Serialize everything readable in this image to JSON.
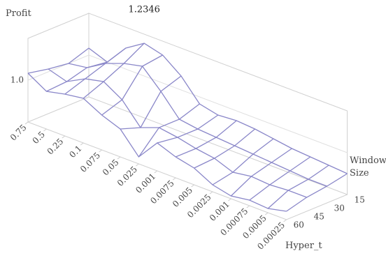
{
  "chart_data": {
    "type": "surface",
    "z_axis_title": "Profit",
    "x_axis_title": "Hyper_t",
    "y_axis_title": "Window Size",
    "categories": [
      "0.75",
      "0.5",
      "0.25",
      "0.1",
      "0.075",
      "0.05",
      "0.025",
      "0.001",
      "0.0075",
      "0.005",
      "0.0025",
      "0.001",
      "0.00075",
      "0.0005",
      "0.00025"
    ],
    "series": [
      {
        "name": "15",
        "values": [
          1.05,
          1.0,
          1.15,
          1.2346,
          1.2,
          1.1,
          0.95,
          0.92,
          0.93,
          0.92,
          0.9,
          0.88,
          0.87,
          0.86,
          0.85
        ]
      },
      {
        "name": "30",
        "values": [
          1.0,
          1.02,
          1.1,
          1.15,
          1.18,
          1.05,
          0.9,
          0.88,
          0.87,
          0.86,
          0.85,
          0.84,
          0.83,
          0.82,
          0.82
        ]
      },
      {
        "name": "45",
        "values": [
          1.02,
          0.98,
          1.05,
          1.08,
          1.0,
          0.85,
          0.9,
          0.88,
          0.85,
          0.83,
          0.78,
          0.8,
          0.79,
          0.8,
          0.8
        ]
      },
      {
        "name": "60",
        "values": [
          1.05,
          0.97,
          1.0,
          1.02,
          0.95,
          0.9,
          0.75,
          0.9,
          0.85,
          0.82,
          0.75,
          0.72,
          0.74,
          0.73,
          0.76
        ]
      }
    ],
    "color": "#8a87c9",
    "zlim": [
      0.7,
      1.3
    ],
    "zticks": [
      {
        "value": 1.0,
        "label": "1.0"
      }
    ]
  }
}
